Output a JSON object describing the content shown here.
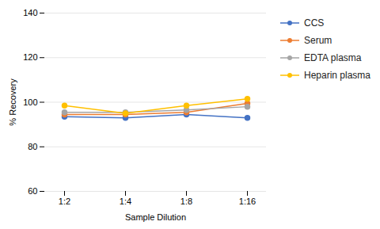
{
  "chart_data": {
    "type": "line",
    "categories": [
      "1:2",
      "1:4",
      "1:8",
      "1:16"
    ],
    "series": [
      {
        "name": "CCS",
        "color": "#4472C4",
        "marker": "circle",
        "values": [
          93.5,
          93.0,
          94.5,
          93.0
        ]
      },
      {
        "name": "Serum",
        "color": "#ED7D31",
        "marker": "circle",
        "values": [
          94.5,
          94.5,
          95.5,
          99.5
        ]
      },
      {
        "name": "EDTA plasma",
        "color": "#A5A5A5",
        "marker": "circle",
        "values": [
          95.5,
          95.5,
          96.5,
          98.0
        ]
      },
      {
        "name": "Heparin plasma",
        "color": "#FFC000",
        "marker": "circle",
        "values": [
          98.5,
          95.0,
          98.5,
          101.5
        ]
      }
    ],
    "xlabel": "Sample Dilution",
    "ylabel": "% Recovery",
    "ylim": [
      60,
      140
    ],
    "yticks": [
      60,
      80,
      100,
      120,
      140
    ],
    "grid": true,
    "legend": "right"
  }
}
